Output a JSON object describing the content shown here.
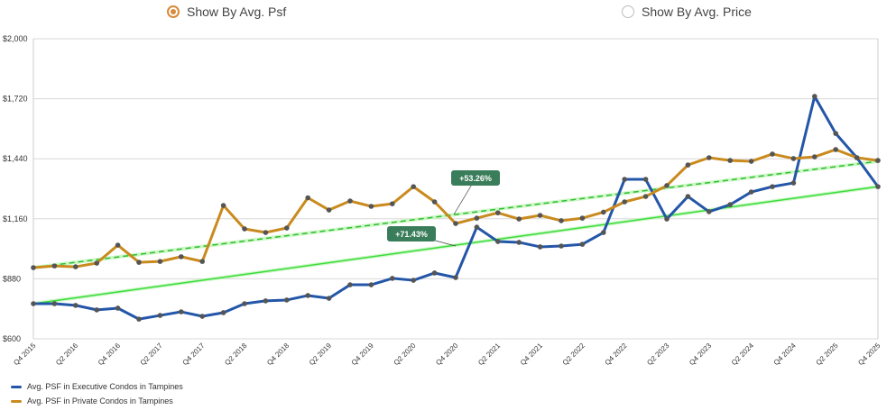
{
  "controls": {
    "options": [
      {
        "label": "Show By Avg. Psf",
        "selected": true
      },
      {
        "label": "Show By Avg. Price",
        "selected": false
      }
    ]
  },
  "chart_data": {
    "type": "line",
    "ylim": [
      600,
      2000
    ],
    "y_ticks": [
      "$600",
      "$880",
      "$1,160",
      "$1,440",
      "$1,720",
      "$2,000"
    ],
    "y_tick_values": [
      600,
      880,
      1160,
      1440,
      1720,
      2000
    ],
    "x": [
      "Q4 2015",
      "Q1 2016",
      "Q2 2016",
      "Q3 2016",
      "Q4 2016",
      "Q1 2017",
      "Q2 2017",
      "Q3 2017",
      "Q4 2017",
      "Q1 2018",
      "Q2 2018",
      "Q3 2018",
      "Q4 2018",
      "Q1 2019",
      "Q2 2019",
      "Q3 2019",
      "Q4 2019",
      "Q1 2020",
      "Q2 2020",
      "Q3 2020",
      "Q4 2020",
      "Q1 2021",
      "Q2 2021",
      "Q3 2021",
      "Q4 2021",
      "Q1 2022",
      "Q2 2022",
      "Q3 2022",
      "Q4 2022",
      "Q1 2023",
      "Q2 2023",
      "Q3 2023",
      "Q4 2023",
      "Q1 2024",
      "Q2 2024",
      "Q3 2024",
      "Q4 2024",
      "Q1 2025",
      "Q2 2025",
      "Q3 2025",
      "Q4 2025"
    ],
    "x_tick_labels": [
      "Q4 2015",
      "Q2 2016",
      "Q4 2016",
      "Q2 2017",
      "Q4 2017",
      "Q2 2018",
      "Q4 2018",
      "Q2 2019",
      "Q4 2019",
      "Q2 2020",
      "Q4 2020",
      "Q2 2021",
      "Q4 2021",
      "Q2 2022",
      "Q4 2022",
      "Q2 2023",
      "Q4 2023",
      "Q2 2024",
      "Q4 2024",
      "Q2 2025",
      "Q4 2025"
    ],
    "grid": "horizontal",
    "legend_position": "bottom-left",
    "series": [
      {
        "name": "Avg. PSF in Executive Condos in Tampines",
        "color": "#2456a8",
        "values": [
          764,
          764,
          756,
          735,
          743,
          692,
          709,
          726,
          705,
          722,
          764,
          777,
          781,
          802,
          789,
          852,
          852,
          882,
          873,
          907,
          886,
          1121,
          1054,
          1050,
          1029,
          1033,
          1041,
          1096,
          1344,
          1344,
          1159,
          1264,
          1193,
          1226,
          1285,
          1310,
          1327,
          1731,
          1558,
          1445,
          1310
        ],
        "trend": {
          "start": 764,
          "end": 1310,
          "style": "solid",
          "label": "+71.43%"
        }
      },
      {
        "name": "Avg. PSF in Private Condos in Tampines",
        "color": "#c98a1e",
        "values": [
          932,
          940,
          936,
          953,
          1037,
          957,
          961,
          983,
          961,
          1222,
          1113,
          1096,
          1117,
          1258,
          1201,
          1243,
          1218,
          1230,
          1310,
          1239,
          1138,
          1163,
          1188,
          1159,
          1176,
          1151,
          1163,
          1191,
          1239,
          1264,
          1315,
          1411,
          1445,
          1432,
          1428,
          1462,
          1441,
          1449,
          1483,
          1445,
          1432
        ],
        "trend": {
          "start": 932,
          "end": 1428,
          "style": "dashed",
          "label": "+53.26%"
        }
      }
    ],
    "trend_color": "#3ddc3d",
    "annotation_color": "#3a7d5a"
  }
}
